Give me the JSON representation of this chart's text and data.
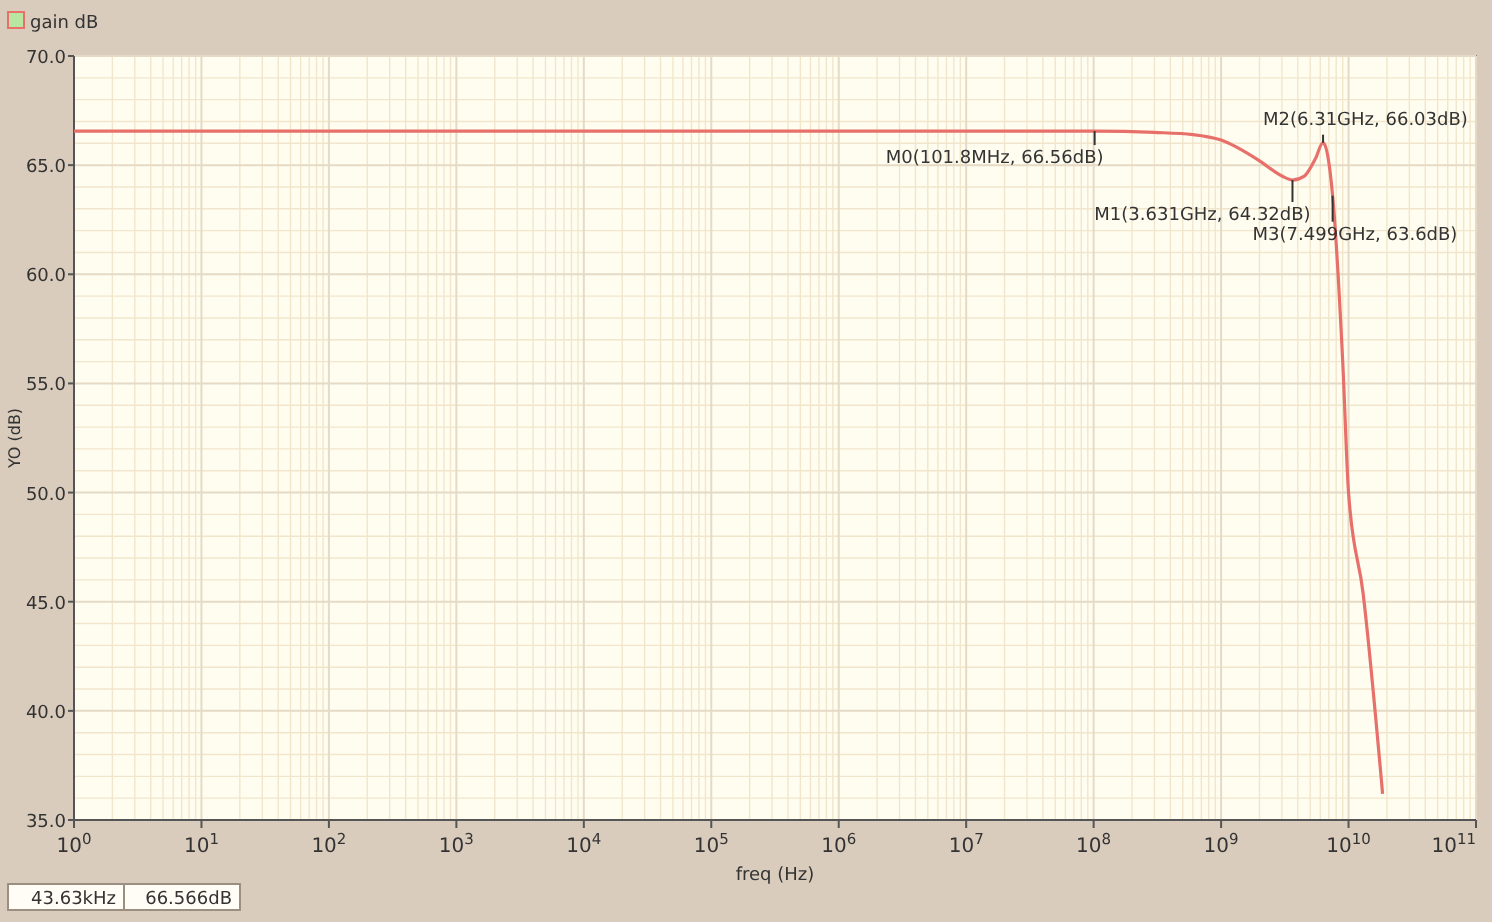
{
  "chart_data": {
    "type": "line",
    "xlabel": "freq (Hz)",
    "ylabel": "YO (dB)",
    "log": "x",
    "grid": true,
    "legend": "top left",
    "marker": "none",
    "line_style": "solid",
    "xlim": [
      1,
      100000000000
    ],
    "ylim": [
      35,
      70
    ],
    "xticks": [
      {
        "value": 1,
        "label": "10$^{0}$"
      },
      {
        "value": 10,
        "label": "10$^{1}$"
      },
      {
        "value": 100,
        "label": "10$^{2}$"
      },
      {
        "value": 1000,
        "label": "10$^{3}$"
      },
      {
        "value": 10000,
        "label": "10$^{4}$"
      },
      {
        "value": 100000,
        "label": "10$^{5}$"
      },
      {
        "value": 1000000,
        "label": "10$^{6}$"
      },
      {
        "value": 10000000,
        "label": "10$^{7}$"
      },
      {
        "value": 100000000,
        "label": "10$^{8}$"
      },
      {
        "value": 1000000000,
        "label": "10$^{9}$"
      },
      {
        "value": 10000000000,
        "label": "10$^{10}$"
      },
      {
        "value": 100000000000,
        "label": "10$^{11}$"
      }
    ],
    "yticks": [
      {
        "value": 35,
        "label": "35.0"
      },
      {
        "value": 40,
        "label": "40.0"
      },
      {
        "value": 45,
        "label": "45.0"
      },
      {
        "value": 50,
        "label": "50.0"
      },
      {
        "value": 55,
        "label": "55.0"
      },
      {
        "value": 60,
        "label": "60.0"
      },
      {
        "value": 65,
        "label": "65.0"
      },
      {
        "value": 70,
        "label": "70.0"
      }
    ],
    "series": [
      {
        "name": "gain dB",
        "color": "#e8706a",
        "x": [
          1,
          10000000,
          101800000,
          300000000,
          600000000,
          1000000000,
          2000000000,
          3000000000,
          3631000000,
          4500000000,
          5500000000,
          6310000000,
          7499000000,
          9000000000,
          10000000000,
          13000000000,
          18500000000
        ],
        "values": [
          66.56,
          66.56,
          66.56,
          66.5,
          66.4,
          66.15,
          65.2,
          64.5,
          64.32,
          64.5,
          65.3,
          66.03,
          63.6,
          56,
          50,
          45.4,
          36.2
        ]
      }
    ],
    "annotations": [
      {
        "text": "M0(101.8MHz, 66.56dB)",
        "x": 101800000,
        "y": 66.56
      },
      {
        "text": "M1(3.631GHz, 64.32dB)",
        "x": 3631000000,
        "y": 64.32
      },
      {
        "text": "M2(6.31GHz, 66.03dB)",
        "x": 6310000000,
        "y": 66.03
      },
      {
        "text": "M3(7.499GHz, 63.6dB)",
        "x": 7499000000,
        "y": 63.6
      },
      "43.63kHz",
      "66.566dB"
    ]
  }
}
